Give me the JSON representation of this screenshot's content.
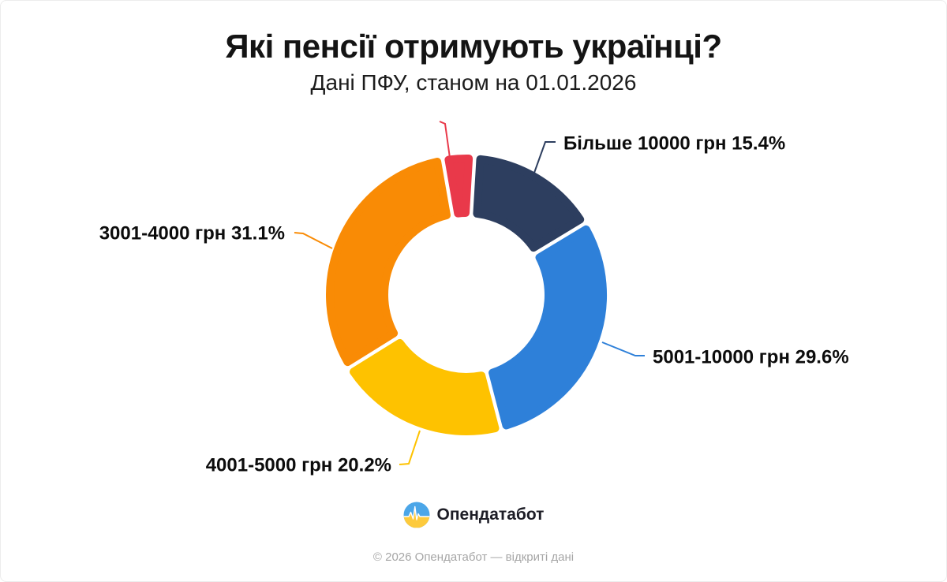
{
  "title": "Які пенсії отримують українці?",
  "subtitle": "Дані ПФУ, станом на 01.01.2026",
  "footer": {
    "brand": "Опендатабот",
    "copyright": "© 2026 Опендатабот — відкриті дані"
  },
  "colors": {
    "background": "#ffffff",
    "title_text": "#141414",
    "label_text": "#0c0c0c",
    "muted_text": "#a6a6a6",
    "logo_blue": "#4ba6e8",
    "logo_yellow": "#fdca3c"
  },
  "chart_data": {
    "type": "pie",
    "subtype": "donut",
    "title": "Які пенсії отримують українці?",
    "subtitle": "Дані ПФУ, станом на 01.01.2026",
    "unit": "%",
    "legend": "none",
    "start_angle_deg": -9.9,
    "inner_radius_ratio": 0.56,
    "segments": [
      {
        "range": "",
        "value": 3.7,
        "label": "",
        "color": "#e9394a"
      },
      {
        "range": "Більше 10000 грн",
        "value": 15.4,
        "label": "Більше 10000 грн 15.4%",
        "color": "#2d3e5f"
      },
      {
        "range": "5001-10000 грн",
        "value": 29.6,
        "label": "5001-10000 грн 29.6%",
        "color": "#2e80d9"
      },
      {
        "range": "4001-5000 грн",
        "value": 20.2,
        "label": "4001-5000 грн 20.2%",
        "color": "#fec200"
      },
      {
        "range": "3001-4000 грн",
        "value": 31.1,
        "label": "3001-4000 грн 31.1%",
        "color": "#f98b05"
      }
    ]
  }
}
